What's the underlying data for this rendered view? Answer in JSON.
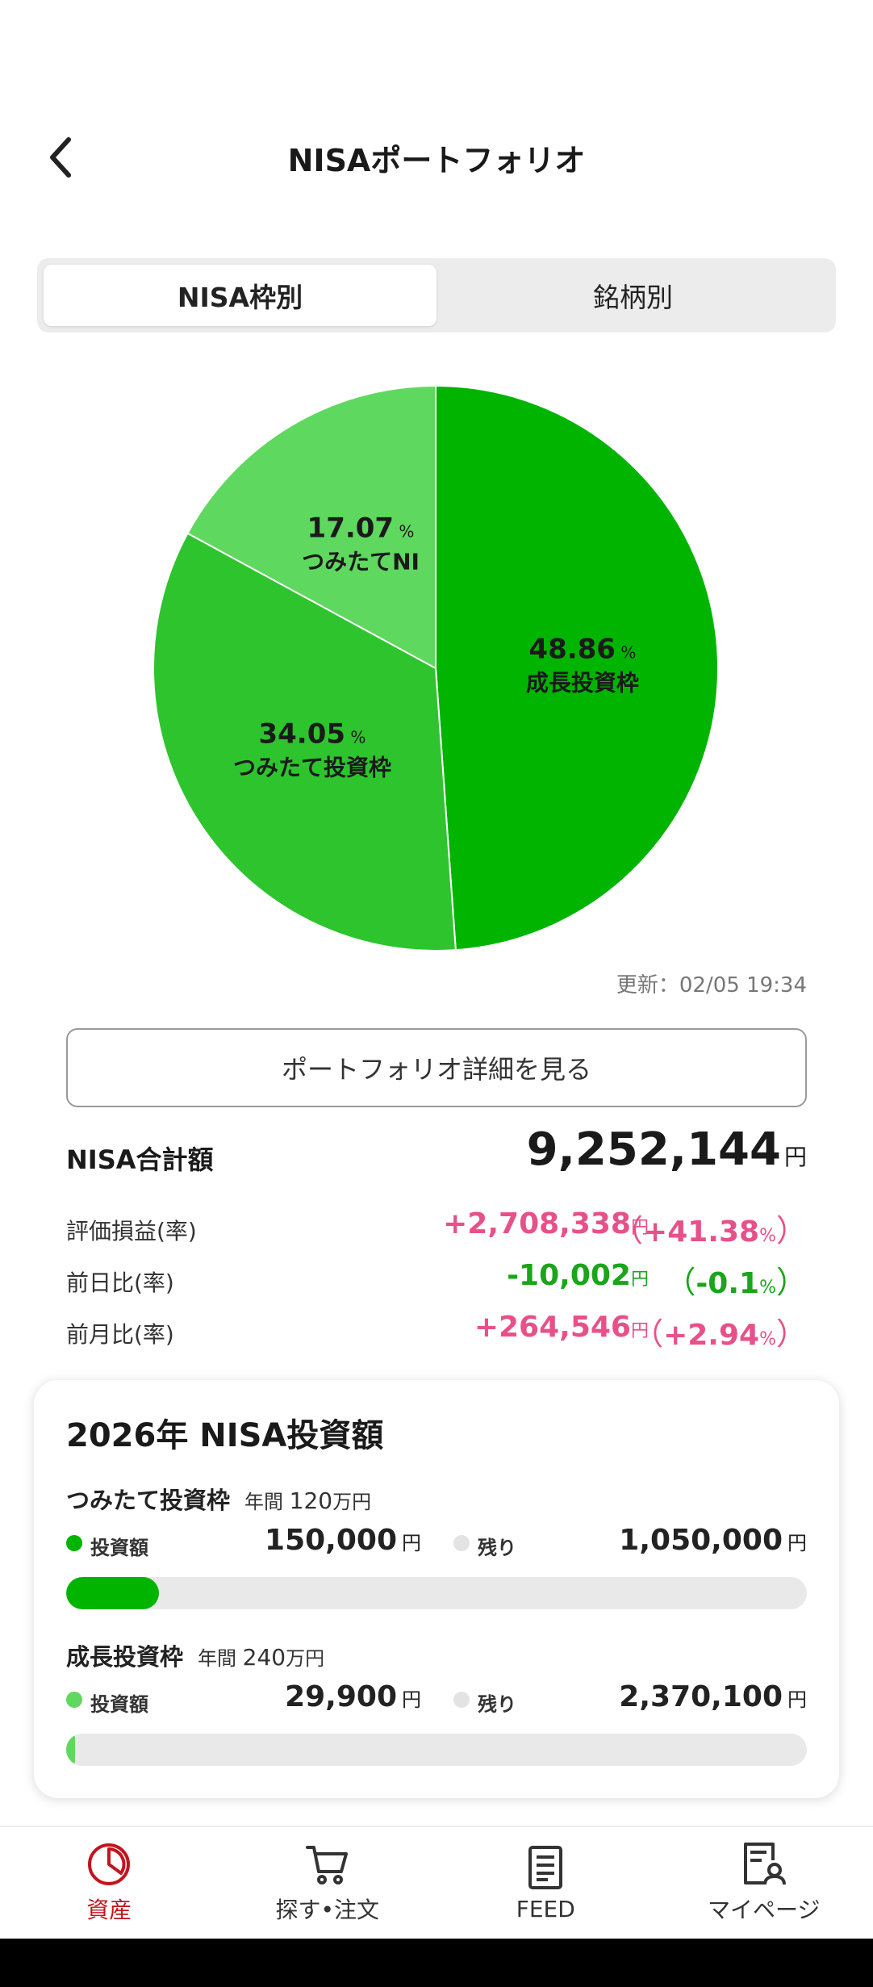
{
  "header": {
    "title": "NISAポートフォリオ"
  },
  "tabs": [
    {
      "label": "NISA枠別",
      "active": true
    },
    {
      "label": "銘柄別",
      "active": false
    }
  ],
  "chart_data": {
    "type": "pie",
    "slices": [
      {
        "label": "成長投資枠",
        "value": 48.86,
        "color": "#00b400"
      },
      {
        "label": "つみたて投資枠",
        "value": 34.05,
        "color": "#2ec42e"
      },
      {
        "label": "つみたてNI",
        "value": 17.07,
        "color": "#5fd85f"
      }
    ],
    "value_suffix": "%"
  },
  "update_time": "更新：02/05 19:34",
  "detail_button": "ポートフォリオ詳細を見る",
  "totals": {
    "label": "NISA合計額",
    "value": "9,252,144",
    "yen": "円"
  },
  "stats": [
    {
      "label": "評価損益(率)",
      "value": "+2,708,338",
      "rate": "+41.38",
      "tone": "pink"
    },
    {
      "label": "前日比(率)",
      "value": "-10,002",
      "rate": "-0.1",
      "tone": "green"
    },
    {
      "label": "前月比(率)",
      "value": "+264,546",
      "rate": "+2.94",
      "tone": "pink"
    }
  ],
  "investment": {
    "title": "2026年 NISA投資額",
    "quotas": [
      {
        "name": "つみたて投資枠",
        "annual_prefix": "年間",
        "annual_amount": "120",
        "annual_unit": "万円",
        "invested_label": "投資額",
        "invested": "150,000",
        "remaining_label": "残り",
        "remaining": "1,050,000",
        "progress": 0.125,
        "color": "#00b400"
      },
      {
        "name": "成長投資枠",
        "annual_prefix": "年間",
        "annual_amount": "240",
        "annual_unit": "万円",
        "invested_label": "投資額",
        "invested": "29,900",
        "remaining_label": "残り",
        "remaining": "2,370,100",
        "progress": 0.0125,
        "color": "#5fd85f"
      }
    ],
    "yen": "円",
    "remaining_dot_color": "#e3e3e3"
  },
  "nav": [
    {
      "label": "資産",
      "icon": "pie-chart-icon",
      "active": true
    },
    {
      "label": "探す•注文",
      "icon": "cart-icon",
      "active": false
    },
    {
      "label": "FEED",
      "icon": "document-icon",
      "active": false
    },
    {
      "label": "マイページ",
      "icon": "profile-doc-icon",
      "active": false
    }
  ],
  "colors": {
    "accent_red": "#c2151f",
    "positive_pink": "#e8508a",
    "negative_green": "#1aa51a"
  }
}
